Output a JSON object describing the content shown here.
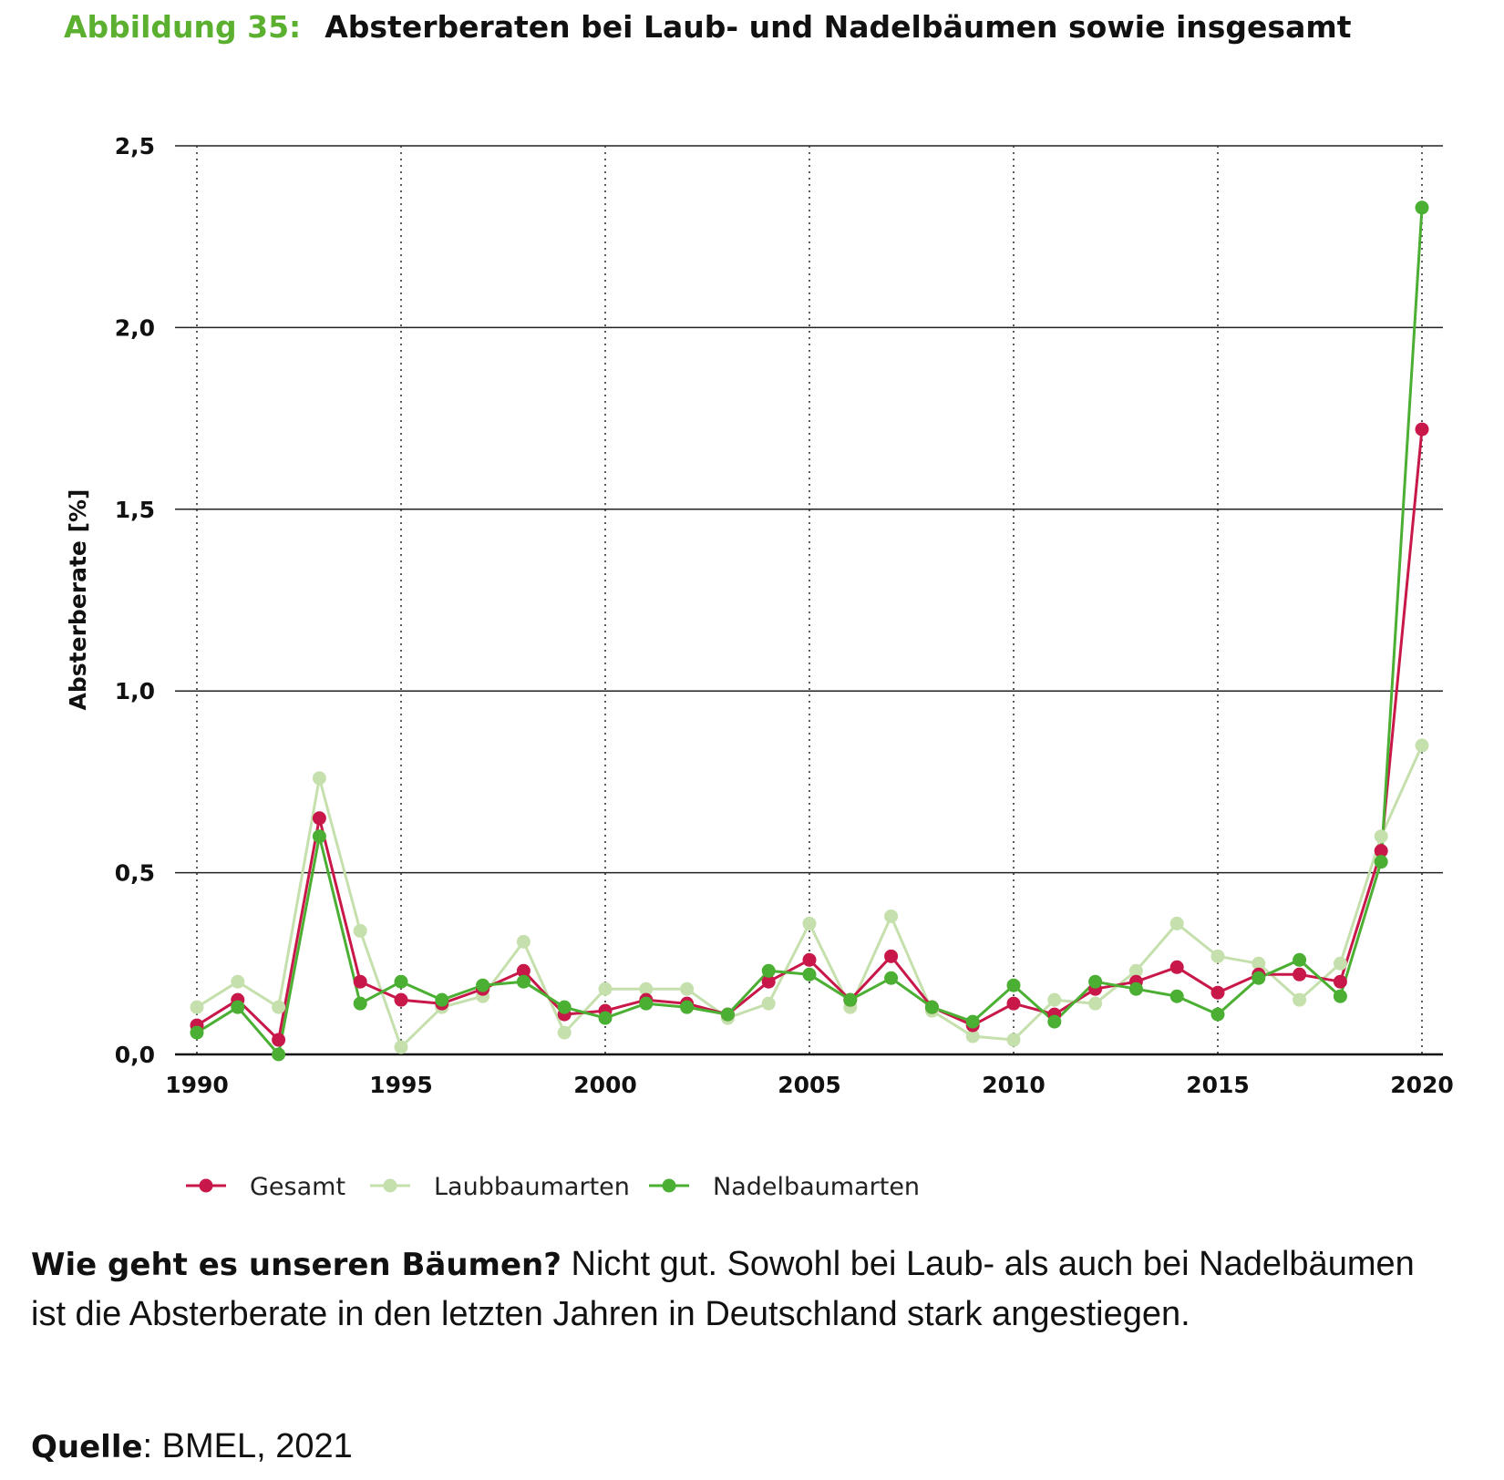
{
  "header": {
    "label": "Abbildung 35:",
    "title": "Absterberaten bei Laub- und Nadelbäumen sowie insgesamt"
  },
  "chart_data": {
    "type": "line",
    "title": "Absterberaten bei Laub- und Nadelbäumen sowie insgesamt",
    "xlabel": "",
    "ylabel": "Absterberate [%]",
    "x": [
      1990,
      1991,
      1992,
      1993,
      1994,
      1995,
      1996,
      1997,
      1998,
      1999,
      2000,
      2001,
      2002,
      2003,
      2004,
      2005,
      2006,
      2007,
      2008,
      2009,
      2010,
      2011,
      2012,
      2013,
      2014,
      2015,
      2016,
      2017,
      2018,
      2019,
      2020
    ],
    "xlim": [
      1990,
      2020
    ],
    "ylim": [
      0,
      2.5
    ],
    "x_ticks": [
      1990,
      1995,
      2000,
      2005,
      2010,
      2015,
      2020
    ],
    "x_tick_labels": [
      "1990",
      "1995",
      "2000",
      "2005",
      "2010",
      "2015",
      "2020"
    ],
    "y_ticks": [
      0,
      0.5,
      1.0,
      1.5,
      2.0,
      2.5
    ],
    "y_tick_labels": [
      "0,0",
      "0,5",
      "1,0",
      "1,5",
      "2,0",
      "2,5"
    ],
    "grid": "horizontal solid, vertical dotted",
    "legend_position": "bottom-left",
    "series": [
      {
        "name": "Gesamt",
        "color": "#c8184a",
        "values": [
          0.08,
          0.15,
          0.04,
          0.65,
          0.2,
          0.15,
          0.14,
          0.18,
          0.23,
          0.11,
          0.12,
          0.15,
          0.14,
          0.11,
          0.2,
          0.26,
          0.15,
          0.27,
          0.13,
          0.08,
          0.14,
          0.11,
          0.18,
          0.2,
          0.24,
          0.17,
          0.22,
          0.22,
          0.2,
          0.56,
          1.72
        ]
      },
      {
        "name": "Laubbaumarten",
        "color": "#c5e0ad",
        "values": [
          0.13,
          0.2,
          0.13,
          0.76,
          0.34,
          0.02,
          0.13,
          0.16,
          0.31,
          0.06,
          0.18,
          0.18,
          0.18,
          0.1,
          0.14,
          0.36,
          0.13,
          0.38,
          0.12,
          0.05,
          0.04,
          0.15,
          0.14,
          0.23,
          0.36,
          0.27,
          0.25,
          0.15,
          0.25,
          0.6,
          0.85
        ]
      },
      {
        "name": "Nadelbaumarten",
        "color": "#4aaf32",
        "values": [
          0.06,
          0.13,
          0.0,
          0.6,
          0.14,
          0.2,
          0.15,
          0.19,
          0.2,
          0.13,
          0.1,
          0.14,
          0.13,
          0.11,
          0.23,
          0.22,
          0.15,
          0.21,
          0.13,
          0.09,
          0.19,
          0.09,
          0.2,
          0.18,
          0.16,
          0.11,
          0.21,
          0.26,
          0.16,
          0.53,
          2.33
        ]
      }
    ]
  },
  "description": {
    "bold": "Wie geht es unseren Bäumen?",
    "text": " Nicht gut. Sowohl bei Laub- als auch bei Nadelbäumen ist die Absterberate in den letzten Jahren in Deutschland stark angestiegen."
  },
  "source": {
    "label": "Quelle",
    "value": ": BMEL, 2021"
  }
}
